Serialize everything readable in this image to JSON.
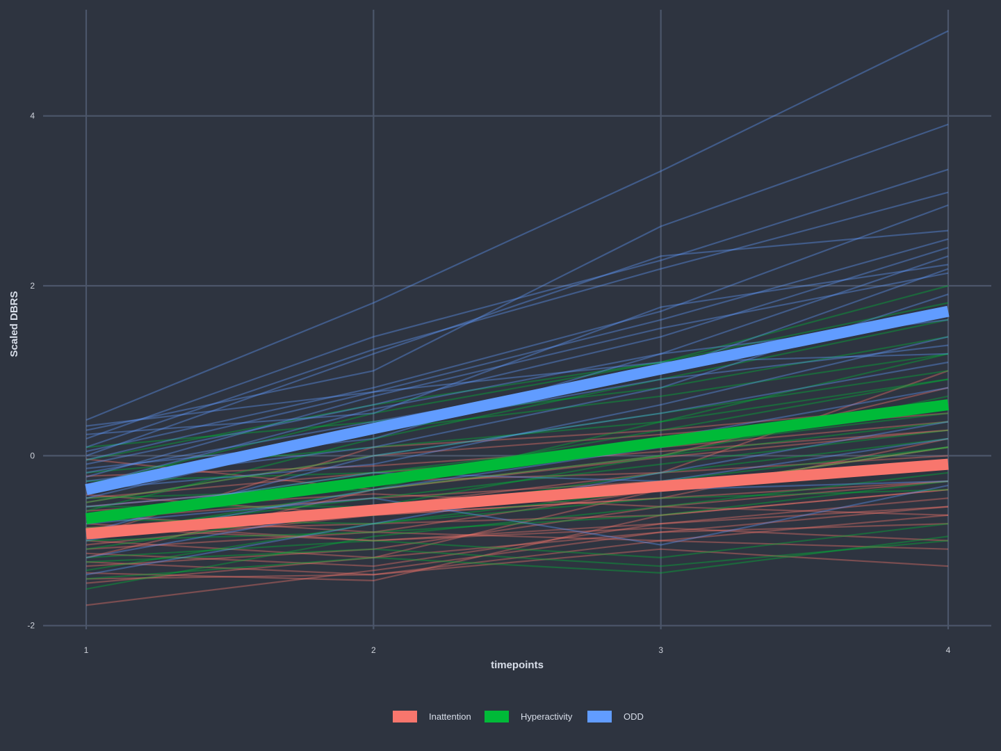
{
  "chart_data": {
    "type": "line",
    "title": "",
    "xlabel": "timepoints",
    "ylabel": "Scaled DBRS",
    "x": [
      1,
      2,
      3,
      4
    ],
    "x_ticks": [
      "1",
      "2",
      "3",
      "4"
    ],
    "y_ticks": [
      "-2",
      "0",
      "2",
      "4"
    ],
    "xlim": [
      0.85,
      4.15
    ],
    "ylim": [
      -2.15,
      5.25
    ],
    "grid": true,
    "legend_position": "bottom",
    "colors": {
      "background": "#2e3440",
      "grid": "#4c566a"
    },
    "series": [
      {
        "name": "Inattention",
        "color": "#f8766d",
        "mean": [
          -0.92,
          -0.64,
          -0.36,
          -0.1
        ],
        "individual": [
          [
            -0.04,
            -0.4,
            -0.02,
            0.3
          ],
          [
            -0.24,
            -0.12,
            0.1,
            0.4
          ],
          [
            -0.46,
            -0.7,
            -0.5,
            -0.3
          ],
          [
            -0.55,
            0.0,
            0.25,
            0.5
          ],
          [
            -0.6,
            -0.3,
            -0.2,
            1.0
          ],
          [
            -0.65,
            -0.45,
            -0.6,
            -0.7
          ],
          [
            -0.7,
            -0.9,
            -0.4,
            0.1
          ],
          [
            -0.75,
            -0.5,
            -0.3,
            -0.1
          ],
          [
            -0.8,
            -1.0,
            -0.8,
            -0.6
          ],
          [
            -0.85,
            -0.6,
            -0.2,
            0.0
          ],
          [
            -0.9,
            -0.8,
            -0.7,
            -0.4
          ],
          [
            -0.95,
            0.1,
            0.3,
            0.6
          ],
          [
            -1.0,
            -1.2,
            -0.9,
            -0.8
          ],
          [
            -1.05,
            -0.7,
            -0.5,
            0.2
          ],
          [
            -1.1,
            -0.9,
            -1.0,
            -1.1
          ],
          [
            -1.15,
            -1.3,
            -0.8,
            -0.5
          ],
          [
            -1.2,
            -0.4,
            0.0,
            0.8
          ],
          [
            -1.25,
            -1.4,
            -1.0,
            -0.7
          ],
          [
            -1.3,
            -1.1,
            -0.6,
            -0.3
          ],
          [
            -1.38,
            -1.47,
            -0.7,
            -0.4
          ],
          [
            -1.45,
            -1.4,
            -1.1,
            -1.3
          ],
          [
            -1.5,
            -1.2,
            -0.4,
            0.1
          ],
          [
            -1.76,
            -1.35,
            -0.9,
            -0.6
          ],
          [
            -0.85,
            -1.0,
            -0.85,
            -1.0
          ],
          [
            -0.5,
            -0.2,
            0.05,
            0.3
          ]
        ]
      },
      {
        "name": "Hyperactivity",
        "color": "#00ba38",
        "mean": [
          -0.74,
          -0.3,
          0.16,
          0.6
        ],
        "individual": [
          [
            0.1,
            0.4,
            0.8,
            1.4
          ],
          [
            -0.05,
            0.6,
            1.1,
            2.0
          ],
          [
            -0.2,
            0.1,
            0.4,
            0.9
          ],
          [
            -0.3,
            -0.2,
            0.2,
            0.6
          ],
          [
            -0.4,
            0.3,
            0.7,
            1.2
          ],
          [
            -0.5,
            -0.4,
            0.0,
            0.4
          ],
          [
            -0.55,
            0.0,
            0.5,
            1.0
          ],
          [
            -0.6,
            -0.6,
            -0.3,
            0.1
          ],
          [
            -0.7,
            -0.2,
            0.1,
            0.5
          ],
          [
            -0.75,
            -0.8,
            -0.5,
            -0.4
          ],
          [
            -0.8,
            -0.3,
            0.3,
            0.9
          ],
          [
            -0.85,
            -0.7,
            -0.2,
            0.2
          ],
          [
            -0.9,
            -0.5,
            -0.1,
            0.3
          ],
          [
            -1.0,
            -0.9,
            -0.7,
            -0.3
          ],
          [
            -1.1,
            -0.6,
            0.0,
            0.7
          ],
          [
            -1.2,
            -1.0,
            -1.2,
            -0.8
          ],
          [
            -1.25,
            -1.1,
            -1.3,
            -1.0
          ],
          [
            -1.35,
            -0.8,
            -0.4,
            0.1
          ],
          [
            -1.45,
            -1.2,
            -1.38,
            -0.95
          ],
          [
            -1.57,
            -0.95,
            -0.6,
            -0.2
          ],
          [
            -0.65,
            0.2,
            0.9,
            1.6
          ],
          [
            -0.35,
            0.5,
            1.1,
            1.8
          ],
          [
            -0.95,
            -0.4,
            0.4,
            1.2
          ]
        ]
      },
      {
        "name": "ODD",
        "color": "#619cff",
        "mean": [
          -0.4,
          0.32,
          1.02,
          1.7
        ],
        "individual": [
          [
            0.42,
            1.8,
            3.35,
            5.0
          ],
          [
            0.3,
            1.0,
            2.7,
            3.9
          ],
          [
            0.2,
            1.4,
            2.3,
            3.37
          ],
          [
            0.1,
            1.25,
            2.2,
            3.1
          ],
          [
            0.05,
            0.8,
            1.7,
            2.95
          ],
          [
            0.0,
            1.2,
            2.35,
            2.65
          ],
          [
            -0.05,
            0.75,
            1.6,
            2.55
          ],
          [
            -0.1,
            0.6,
            1.4,
            2.45
          ],
          [
            -0.15,
            0.2,
            1.2,
            2.35
          ],
          [
            -0.2,
            0.4,
            1.0,
            2.2
          ],
          [
            -0.25,
            0.7,
            1.5,
            2.15
          ],
          [
            -0.3,
            0.1,
            0.8,
            1.9
          ],
          [
            -0.4,
            -0.1,
            0.6,
            1.4
          ],
          [
            -0.5,
            0.3,
            0.9,
            1.3
          ],
          [
            -0.6,
            -0.3,
            0.2,
            0.8
          ],
          [
            -0.7,
            -0.2,
            -0.3,
            0.2
          ],
          [
            -0.8,
            -0.5,
            -1.05,
            -0.35
          ],
          [
            -0.9,
            0.0,
            0.5,
            1.1
          ],
          [
            -1.0,
            -0.4,
            0.1,
            0.6
          ],
          [
            -1.2,
            -0.6,
            -0.4,
            -0.3
          ],
          [
            -1.4,
            -0.8,
            -0.2,
            0.4
          ],
          [
            0.35,
            0.75,
            1.1,
            1.2
          ],
          [
            0.25,
            0.5,
            1.75,
            2.25
          ],
          [
            -0.35,
            0.55,
            1.2,
            1.6
          ]
        ]
      }
    ]
  }
}
